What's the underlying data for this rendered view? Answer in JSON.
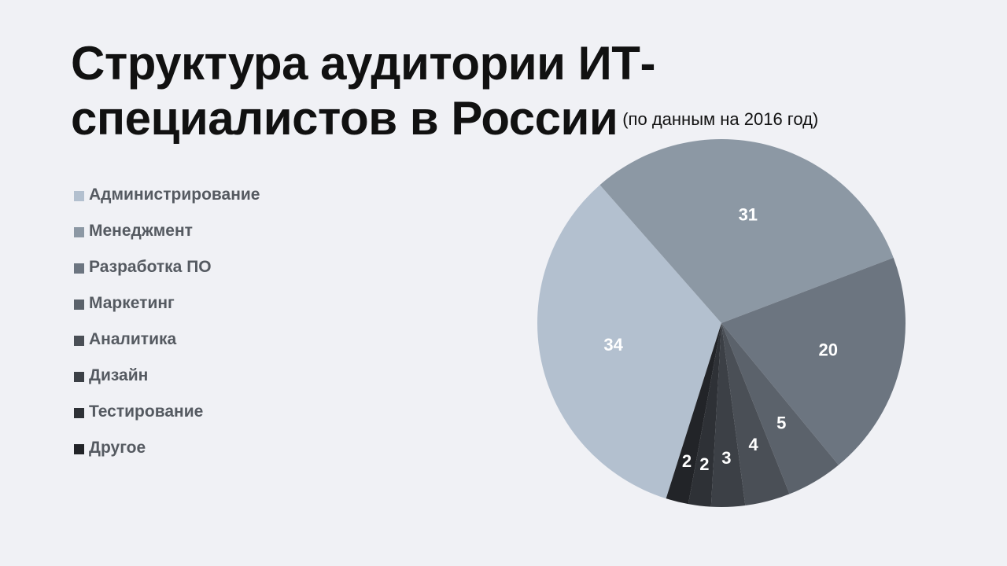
{
  "title": {
    "main": "Структура аудитории ИТ-специалистов в России",
    "subtitle": "(по данным на 2016 год)"
  },
  "chart_data": {
    "type": "pie",
    "title": "Структура аудитории ИТ-специалистов в России",
    "subtitle": "(по данным на 2016 год)",
    "legend_position": "left",
    "slices": [
      {
        "label": "Администрирование",
        "value": 34,
        "color": "#b3c0cf"
      },
      {
        "label": "Менеджмент",
        "value": 31,
        "color": "#8c98a4"
      },
      {
        "label": "Разработка ПО",
        "value": 20,
        "color": "#6c7580"
      },
      {
        "label": "Маркетинг",
        "value": 5,
        "color": "#5b626b"
      },
      {
        "label": "Аналитика",
        "value": 4,
        "color": "#4a4f56"
      },
      {
        "label": "Дизайн",
        "value": 3,
        "color": "#3c4046"
      },
      {
        "label": "Тестирование",
        "value": 2,
        "color": "#2e3136"
      },
      {
        "label": "Другое",
        "value": 2,
        "color": "#222428"
      }
    ]
  }
}
